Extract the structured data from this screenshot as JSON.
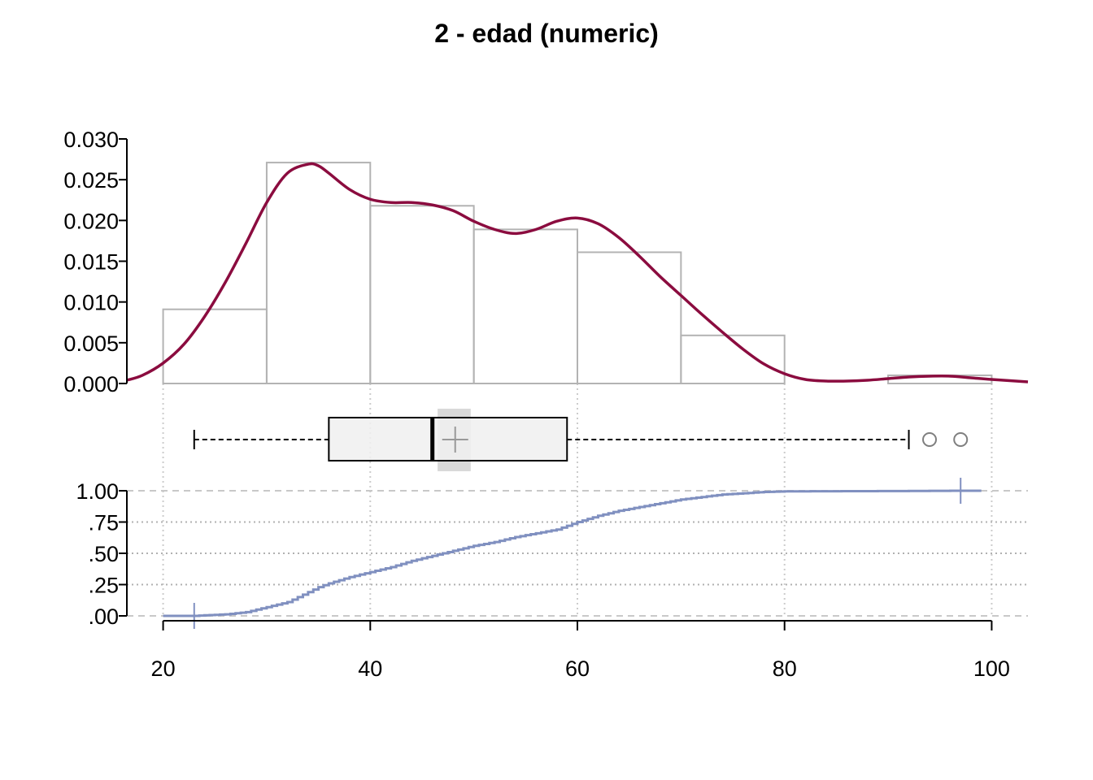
{
  "chart_data": {
    "type": "histogram-boxplot-ecdf",
    "title": "2 - edad (numeric)",
    "xlim": [
      16.5,
      103.5
    ],
    "x_ticks": [
      20,
      40,
      60,
      80,
      100
    ],
    "x_tick_labels": [
      "20",
      "40",
      "60",
      "80",
      "100"
    ],
    "x_gridlines": [
      20,
      40,
      60,
      80,
      100
    ],
    "colors": {
      "histogram_border": "#b3b3b3",
      "density": "#8b0c3f",
      "ecdf": "#8090c0",
      "box_fill": "#f0f0f0",
      "mean_ci": "#d9d9d9",
      "mean_marker": "#999999",
      "grid": "#cccccc",
      "outlier": "#7f7f7f"
    },
    "histogram": {
      "ylim": [
        0,
        0.03
      ],
      "y_ticks": [
        0,
        0.005,
        0.01,
        0.015,
        0.02,
        0.025,
        0.03
      ],
      "y_tick_labels": [
        "0.000",
        "0.005",
        "0.010",
        "0.015",
        "0.020",
        "0.025",
        "0.030"
      ],
      "bins": [
        {
          "start": 20,
          "end": 30,
          "density": 0.0091
        },
        {
          "start": 30,
          "end": 40,
          "density": 0.0271
        },
        {
          "start": 40,
          "end": 50,
          "density": 0.0218
        },
        {
          "start": 50,
          "end": 60,
          "density": 0.0189
        },
        {
          "start": 60,
          "end": 70,
          "density": 0.0161
        },
        {
          "start": 70,
          "end": 80,
          "density": 0.0059
        },
        {
          "start": 80,
          "end": 90,
          "density": 0.0
        },
        {
          "start": 90,
          "end": 100,
          "density": 0.001
        }
      ]
    },
    "density": {
      "x": [
        16.5,
        18,
        20,
        22,
        24,
        26,
        28,
        30,
        32,
        34,
        35,
        36,
        38,
        40,
        42,
        44,
        46,
        48,
        50,
        52,
        54,
        56,
        58,
        60,
        62,
        64,
        66,
        68,
        70,
        72,
        74,
        76,
        78,
        80,
        82,
        84,
        86,
        88,
        90,
        92,
        94,
        96,
        98,
        100,
        103.5
      ],
      "y": [
        0.0004,
        0.001,
        0.0025,
        0.0048,
        0.0082,
        0.0124,
        0.0172,
        0.0222,
        0.0258,
        0.0269,
        0.0267,
        0.0258,
        0.0238,
        0.0226,
        0.0222,
        0.0222,
        0.0219,
        0.0212,
        0.0199,
        0.0189,
        0.0184,
        0.0189,
        0.0199,
        0.0203,
        0.0196,
        0.0179,
        0.0156,
        0.0131,
        0.0108,
        0.0085,
        0.0063,
        0.0042,
        0.0024,
        0.0012,
        0.0005,
        0.0003,
        0.0003,
        0.0004,
        0.0006,
        0.0008,
        0.0009,
        0.0009,
        0.0007,
        0.0005,
        0.0002
      ]
    },
    "boxplot": {
      "whisker_low": 23,
      "q1": 36,
      "median": 46,
      "q3": 59,
      "whisker_high": 92,
      "mean": 48.2,
      "mean_ci": [
        46.5,
        49.7
      ],
      "outliers": [
        94,
        97
      ]
    },
    "ecdf": {
      "ylim": [
        0,
        1
      ],
      "y_ticks": [
        0,
        0.25,
        0.5,
        0.75,
        1
      ],
      "y_tick_labels": [
        ".00",
        ".25",
        ".50",
        ".75",
        "1.00"
      ],
      "x_range": [
        20,
        99
      ],
      "min_marker": 23,
      "max_marker": 97,
      "points": [
        [
          23,
          0.0
        ],
        [
          24,
          0.005
        ],
        [
          26,
          0.012
        ],
        [
          28,
          0.03
        ],
        [
          30,
          0.07
        ],
        [
          32,
          0.11
        ],
        [
          34,
          0.19
        ],
        [
          35,
          0.23
        ],
        [
          36,
          0.26
        ],
        [
          38,
          0.31
        ],
        [
          40,
          0.35
        ],
        [
          42,
          0.39
        ],
        [
          44,
          0.44
        ],
        [
          46,
          0.48
        ],
        [
          48,
          0.52
        ],
        [
          50,
          0.56
        ],
        [
          52,
          0.59
        ],
        [
          54,
          0.63
        ],
        [
          56,
          0.66
        ],
        [
          58,
          0.69
        ],
        [
          60,
          0.75
        ],
        [
          62,
          0.8
        ],
        [
          64,
          0.84
        ],
        [
          66,
          0.87
        ],
        [
          68,
          0.9
        ],
        [
          70,
          0.93
        ],
        [
          72,
          0.95
        ],
        [
          74,
          0.97
        ],
        [
          76,
          0.98
        ],
        [
          78,
          0.99
        ],
        [
          80,
          0.995
        ],
        [
          92,
          0.998
        ],
        [
          97,
          1.0
        ],
        [
          99,
          1.0
        ]
      ]
    }
  }
}
